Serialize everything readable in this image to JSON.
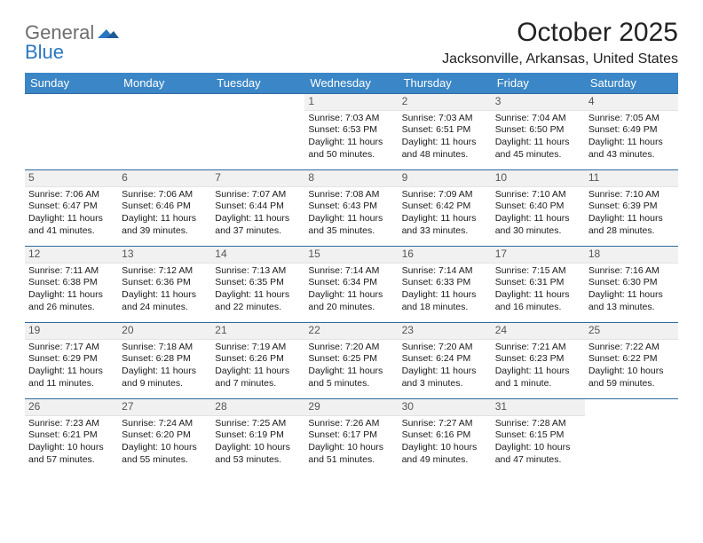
{
  "logo": {
    "text_general": "General",
    "text_blue": "Blue"
  },
  "header": {
    "month_title": "October 2025",
    "location": "Jacksonville, Arkansas, United States"
  },
  "colors": {
    "header_band": "#3b86c6",
    "header_text": "#ffffff",
    "row_separator": "#2f6aa0",
    "daynum_bg": "#f1f1f1",
    "logo_gray": "#6e6e6e",
    "logo_blue": "#2b78c2"
  },
  "day_names": [
    "Sunday",
    "Monday",
    "Tuesday",
    "Wednesday",
    "Thursday",
    "Friday",
    "Saturday"
  ],
  "weeks": [
    [
      null,
      null,
      null,
      {
        "n": "1",
        "sunrise": "7:03 AM",
        "sunset": "6:53 PM",
        "daylight": "11 hours and 50 minutes."
      },
      {
        "n": "2",
        "sunrise": "7:03 AM",
        "sunset": "6:51 PM",
        "daylight": "11 hours and 48 minutes."
      },
      {
        "n": "3",
        "sunrise": "7:04 AM",
        "sunset": "6:50 PM",
        "daylight": "11 hours and 45 minutes."
      },
      {
        "n": "4",
        "sunrise": "7:05 AM",
        "sunset": "6:49 PM",
        "daylight": "11 hours and 43 minutes."
      }
    ],
    [
      {
        "n": "5",
        "sunrise": "7:06 AM",
        "sunset": "6:47 PM",
        "daylight": "11 hours and 41 minutes."
      },
      {
        "n": "6",
        "sunrise": "7:06 AM",
        "sunset": "6:46 PM",
        "daylight": "11 hours and 39 minutes."
      },
      {
        "n": "7",
        "sunrise": "7:07 AM",
        "sunset": "6:44 PM",
        "daylight": "11 hours and 37 minutes."
      },
      {
        "n": "8",
        "sunrise": "7:08 AM",
        "sunset": "6:43 PM",
        "daylight": "11 hours and 35 minutes."
      },
      {
        "n": "9",
        "sunrise": "7:09 AM",
        "sunset": "6:42 PM",
        "daylight": "11 hours and 33 minutes."
      },
      {
        "n": "10",
        "sunrise": "7:10 AM",
        "sunset": "6:40 PM",
        "daylight": "11 hours and 30 minutes."
      },
      {
        "n": "11",
        "sunrise": "7:10 AM",
        "sunset": "6:39 PM",
        "daylight": "11 hours and 28 minutes."
      }
    ],
    [
      {
        "n": "12",
        "sunrise": "7:11 AM",
        "sunset": "6:38 PM",
        "daylight": "11 hours and 26 minutes."
      },
      {
        "n": "13",
        "sunrise": "7:12 AM",
        "sunset": "6:36 PM",
        "daylight": "11 hours and 24 minutes."
      },
      {
        "n": "14",
        "sunrise": "7:13 AM",
        "sunset": "6:35 PM",
        "daylight": "11 hours and 22 minutes."
      },
      {
        "n": "15",
        "sunrise": "7:14 AM",
        "sunset": "6:34 PM",
        "daylight": "11 hours and 20 minutes."
      },
      {
        "n": "16",
        "sunrise": "7:14 AM",
        "sunset": "6:33 PM",
        "daylight": "11 hours and 18 minutes."
      },
      {
        "n": "17",
        "sunrise": "7:15 AM",
        "sunset": "6:31 PM",
        "daylight": "11 hours and 16 minutes."
      },
      {
        "n": "18",
        "sunrise": "7:16 AM",
        "sunset": "6:30 PM",
        "daylight": "11 hours and 13 minutes."
      }
    ],
    [
      {
        "n": "19",
        "sunrise": "7:17 AM",
        "sunset": "6:29 PM",
        "daylight": "11 hours and 11 minutes."
      },
      {
        "n": "20",
        "sunrise": "7:18 AM",
        "sunset": "6:28 PM",
        "daylight": "11 hours and 9 minutes."
      },
      {
        "n": "21",
        "sunrise": "7:19 AM",
        "sunset": "6:26 PM",
        "daylight": "11 hours and 7 minutes."
      },
      {
        "n": "22",
        "sunrise": "7:20 AM",
        "sunset": "6:25 PM",
        "daylight": "11 hours and 5 minutes."
      },
      {
        "n": "23",
        "sunrise": "7:20 AM",
        "sunset": "6:24 PM",
        "daylight": "11 hours and 3 minutes."
      },
      {
        "n": "24",
        "sunrise": "7:21 AM",
        "sunset": "6:23 PM",
        "daylight": "11 hours and 1 minute."
      },
      {
        "n": "25",
        "sunrise": "7:22 AM",
        "sunset": "6:22 PM",
        "daylight": "10 hours and 59 minutes."
      }
    ],
    [
      {
        "n": "26",
        "sunrise": "7:23 AM",
        "sunset": "6:21 PM",
        "daylight": "10 hours and 57 minutes."
      },
      {
        "n": "27",
        "sunrise": "7:24 AM",
        "sunset": "6:20 PM",
        "daylight": "10 hours and 55 minutes."
      },
      {
        "n": "28",
        "sunrise": "7:25 AM",
        "sunset": "6:19 PM",
        "daylight": "10 hours and 53 minutes."
      },
      {
        "n": "29",
        "sunrise": "7:26 AM",
        "sunset": "6:17 PM",
        "daylight": "10 hours and 51 minutes."
      },
      {
        "n": "30",
        "sunrise": "7:27 AM",
        "sunset": "6:16 PM",
        "daylight": "10 hours and 49 minutes."
      },
      {
        "n": "31",
        "sunrise": "7:28 AM",
        "sunset": "6:15 PM",
        "daylight": "10 hours and 47 minutes."
      },
      null
    ]
  ],
  "labels": {
    "sunrise_prefix": "Sunrise: ",
    "sunset_prefix": "Sunset: ",
    "daylight_prefix": "Daylight: "
  }
}
